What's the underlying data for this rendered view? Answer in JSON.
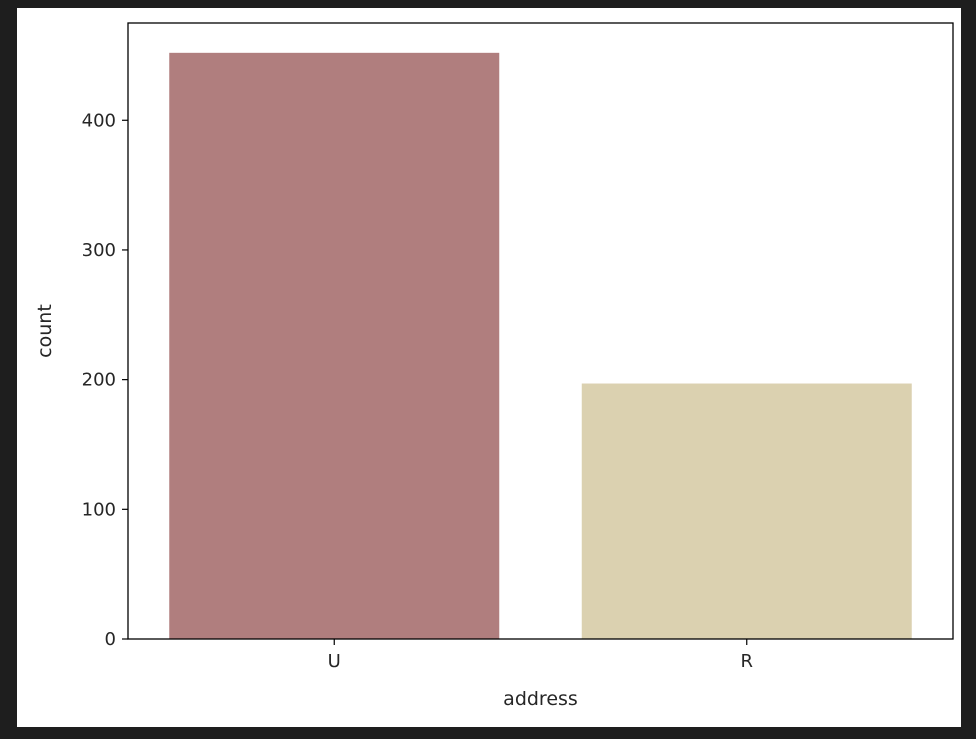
{
  "chart_data": {
    "type": "bar",
    "categories": [
      "U",
      "R"
    ],
    "values": [
      452,
      197
    ],
    "xlabel": "address",
    "ylabel": "count",
    "ylim": [
      0,
      475
    ],
    "yticks": [
      0,
      100,
      200,
      300,
      400
    ],
    "grid": false,
    "bar_colors": [
      "#b07e7e",
      "#dbd1b0"
    ],
    "axis_color": "#000000"
  }
}
